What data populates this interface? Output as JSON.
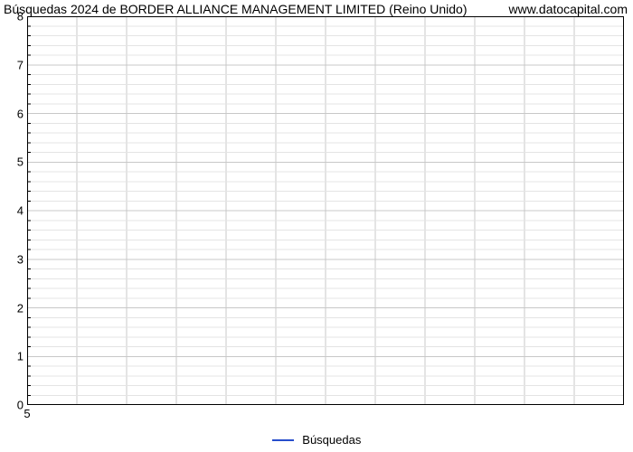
{
  "chart": {
    "type": "line",
    "title_left": "Búsquedas 2024 de BORDER ALLIANCE MANAGEMENT LIMITED (Reino Unido)",
    "title_right": "www.datocapital.com",
    "title_fontsize": 14,
    "title_color": "#000000",
    "background_color": "#ffffff",
    "plot_background_color": "#ffffff",
    "axis_color": "#000000",
    "grid_major_color": "#c8c8c8",
    "grid_minor_color": "#e4e4e4",
    "border_width": 1,
    "y_axis": {
      "min": 0,
      "max": 8,
      "major_ticks": [
        0,
        1,
        2,
        3,
        4,
        5,
        6,
        7,
        8
      ],
      "minor_per_major": 5,
      "tick_label_fontsize": 13,
      "tick_label_color": "#000000",
      "minor_tick_length": 4
    },
    "x_axis": {
      "min": 5,
      "max": 17,
      "major_ticks": [
        5,
        6,
        7,
        8,
        9,
        10,
        11,
        12,
        13,
        14,
        15,
        16,
        17
      ],
      "visible_tick_labels": [
        "5"
      ],
      "tick_label_fontsize": 13,
      "tick_label_color": "#000000"
    },
    "series": [
      {
        "name": "Búsquedas",
        "color": "#274ecc",
        "line_width": 2,
        "points": []
      }
    ],
    "legend": {
      "position": "bottom-center",
      "swatch_width": 24,
      "swatch_height": 2,
      "fontsize": 13
    }
  }
}
